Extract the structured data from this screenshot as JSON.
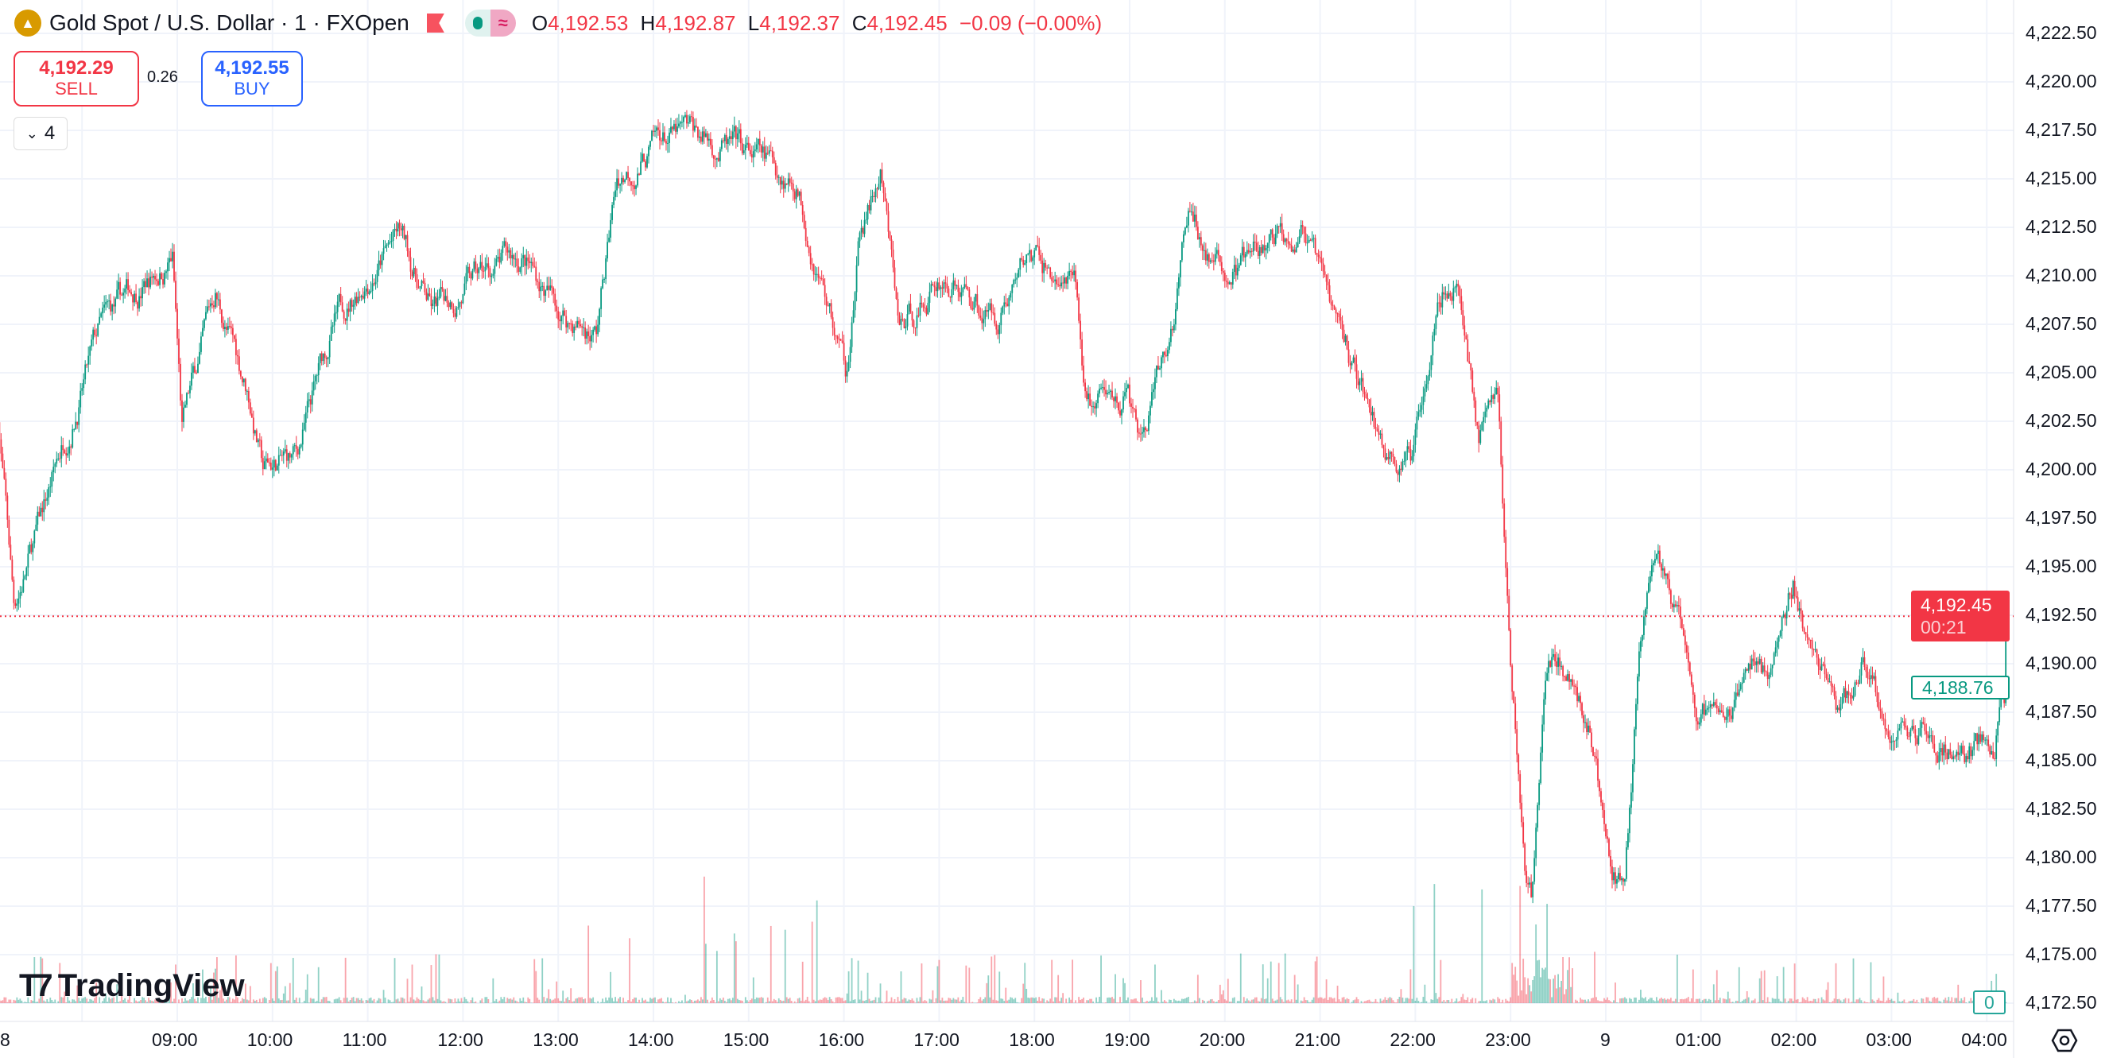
{
  "header": {
    "logo_icon": "gold-bars-icon",
    "title": "Gold Spot / U.S. Dollar · 1 · FXOpen",
    "ohlc": {
      "o_label": "O",
      "o": "4,192.53",
      "h_label": "H",
      "h": "4,192.87",
      "l_label": "L",
      "l": "4,192.37",
      "c_label": "C",
      "c": "4,192.45",
      "change": "−0.09 (−0.00%)"
    }
  },
  "trade": {
    "sell_price": "4,192.29",
    "sell_label": "SELL",
    "spread": "0.26",
    "buy_price": "4,192.55",
    "buy_label": "BUY"
  },
  "indicators": {
    "collapse_count": "4"
  },
  "branding": {
    "name": "TradingView"
  },
  "price_axis": {
    "ticks": [
      "4,222.50",
      "4,220.00",
      "4,217.50",
      "4,215.00",
      "4,212.50",
      "4,210.00",
      "4,207.50",
      "4,205.00",
      "4,202.50",
      "4,200.00",
      "4,197.50",
      "4,195.00",
      "4,192.50",
      "4,190.00",
      "4,187.50",
      "4,185.00",
      "4,182.50",
      "4,180.00",
      "4,177.50",
      "4,175.00",
      "4,172.50"
    ],
    "last_price": "4,192.45",
    "countdown": "00:21",
    "other_price": "4,188.76",
    "volume_value": "0"
  },
  "time_axis": {
    "ticks": [
      "8",
      "09:00",
      "10:00",
      "11:00",
      "12:00",
      "13:00",
      "14:00",
      "15:00",
      "16:00",
      "17:00",
      "18:00",
      "19:00",
      "20:00",
      "21:00",
      "22:00",
      "23:00",
      "9",
      "01:00",
      "02:00",
      "03:00",
      "04:00"
    ]
  },
  "colors": {
    "up": "#089981",
    "down": "#f23645",
    "grid": "#f0f3fa"
  },
  "chart_data": {
    "type": "candlestick",
    "interval": "1 minute",
    "ylim": [
      4171.5,
      4224
    ],
    "last_price": 4192.45,
    "path": [
      [
        "07:07",
        4203
      ],
      [
        "07:17",
        4193
      ],
      [
        "07:33",
        4197
      ],
      [
        "07:50",
        4202
      ],
      [
        "08:11",
        4207
      ],
      [
        "08:37",
        4209.5
      ],
      [
        "08:57",
        4211
      ],
      [
        "09:03",
        4202
      ],
      [
        "09:24",
        4209
      ],
      [
        "09:45",
        4204
      ],
      [
        "09:54",
        4200
      ],
      [
        "10:15",
        4200.5
      ],
      [
        "10:37",
        4207
      ],
      [
        "10:57",
        4210
      ],
      [
        "11:20",
        4212
      ],
      [
        "11:41",
        4208
      ],
      [
        "12:03",
        4209.5
      ],
      [
        "12:37",
        4211
      ],
      [
        "13:03",
        4208
      ],
      [
        "13:24",
        4207
      ],
      [
        "13:37",
        4215
      ],
      [
        "14:05",
        4217
      ],
      [
        "14:33",
        4217
      ],
      [
        "15:00",
        4216
      ],
      [
        "15:30",
        4215
      ],
      [
        "15:46",
        4210
      ],
      [
        "16:01",
        4205
      ],
      [
        "16:10",
        4212
      ],
      [
        "16:23",
        4215
      ],
      [
        "16:35",
        4207
      ],
      [
        "17:01",
        4210
      ],
      [
        "17:35",
        4208
      ],
      [
        "17:56",
        4211
      ],
      [
        "18:26",
        4209
      ],
      [
        "18:33",
        4203
      ],
      [
        "18:59",
        4204
      ],
      [
        "19:06",
        4201
      ],
      [
        "19:25",
        4206
      ],
      [
        "19:37",
        4213
      ],
      [
        "19:58",
        4210
      ],
      [
        "20:24",
        4211
      ],
      [
        "20:49",
        4213
      ],
      [
        "21:02",
        4209
      ],
      [
        "21:23",
        4205
      ],
      [
        "21:40",
        4201
      ],
      [
        "21:57",
        4200
      ],
      [
        "22:14",
        4210
      ],
      [
        "22:27",
        4210
      ],
      [
        "22:40",
        4202
      ],
      [
        "22:52",
        4204
      ],
      [
        "23:00",
        4190
      ],
      [
        "23:09",
        4180
      ],
      [
        "23:13",
        4178
      ],
      [
        "23:22",
        4190
      ],
      [
        "23:39",
        4190
      ],
      [
        "23:52",
        4186
      ],
      [
        "00:04",
        4179
      ],
      [
        "00:12",
        4178
      ],
      [
        "00:21",
        4190
      ],
      [
        "00:33",
        4196
      ],
      [
        "00:46",
        4192
      ],
      [
        "00:59",
        4187
      ],
      [
        "01:20",
        4188
      ],
      [
        "01:33",
        4190
      ],
      [
        "01:45",
        4189
      ],
      [
        "01:58",
        4194
      ],
      [
        "02:11",
        4190
      ],
      [
        "02:28",
        4187
      ],
      [
        "02:41",
        4190
      ],
      [
        "02:58",
        4186
      ],
      [
        "03:19",
        4187
      ],
      [
        "03:44",
        4186
      ],
      [
        "04:05",
        4186
      ],
      [
        "04:09",
        4190
      ],
      [
        "04:12",
        4188.76
      ]
    ]
  }
}
